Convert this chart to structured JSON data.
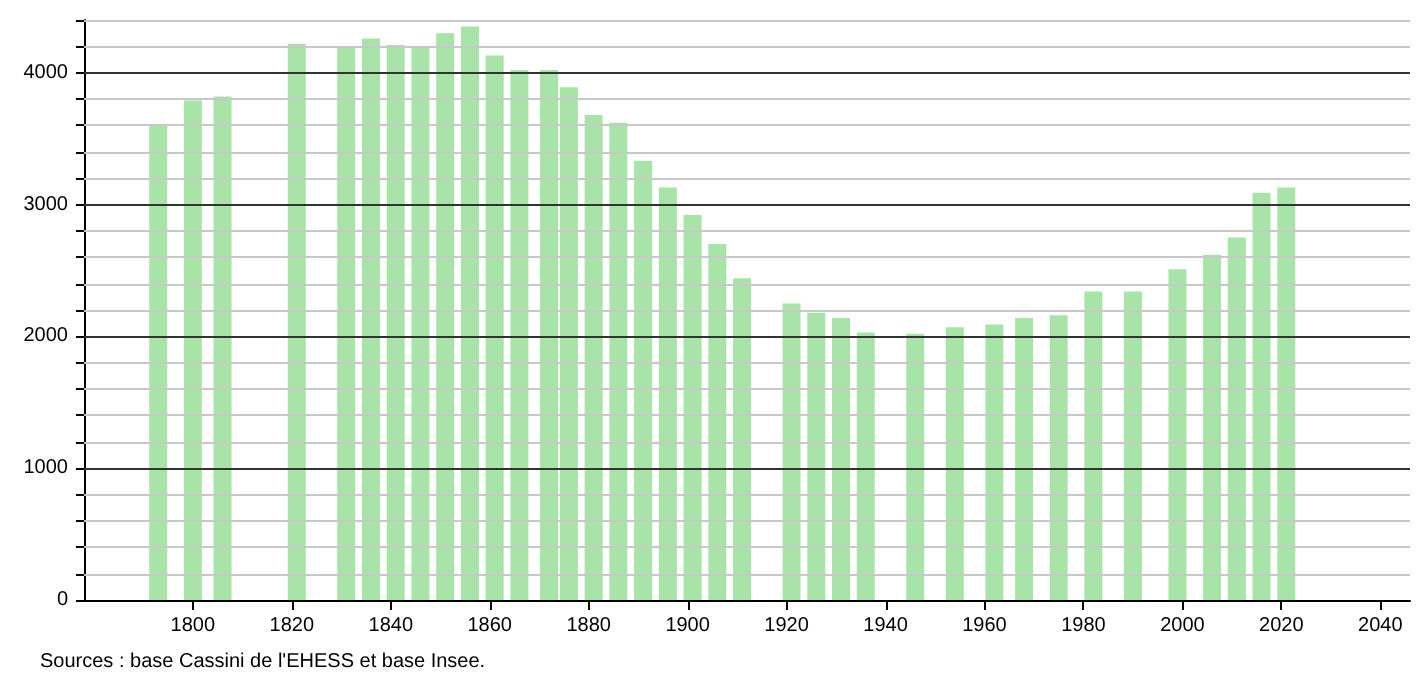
{
  "chart_data": {
    "type": "bar",
    "x": [
      1793,
      1800,
      1806,
      1821,
      1831,
      1836,
      1841,
      1846,
      1851,
      1856,
      1861,
      1866,
      1872,
      1876,
      1881,
      1886,
      1891,
      1896,
      1901,
      1906,
      1911,
      1921,
      1926,
      1931,
      1936,
      1946,
      1954,
      1962,
      1968,
      1975,
      1982,
      1990,
      1999,
      2006,
      2011,
      2016,
      2021
    ],
    "values": [
      3600,
      3790,
      3820,
      4220,
      4200,
      4260,
      4210,
      4200,
      4300,
      4350,
      4130,
      4020,
      4020,
      3890,
      3680,
      3620,
      3330,
      3130,
      2920,
      2700,
      2440,
      2250,
      2180,
      2140,
      2030,
      2020,
      2070,
      2090,
      2140,
      2160,
      2340,
      2340,
      2510,
      2620,
      2750,
      3090,
      3130
    ],
    "color": "#a8e4a8",
    "xlim": [
      1778,
      2046
    ],
    "xticks": [
      1800,
      1820,
      1840,
      1860,
      1880,
      1900,
      1920,
      1940,
      1960,
      1980,
      2000,
      2020,
      2040
    ],
    "ylim": [
      0,
      4400
    ],
    "yticks": [
      0,
      {
        "value": 200,
        "label": null
      },
      {
        "value": 400,
        "label": null
      },
      {
        "value": 600,
        "label": null
      },
      {
        "value": 800,
        "label": null
      },
      1000,
      {
        "value": 1200,
        "label": null
      },
      {
        "value": 1400,
        "label": null
      },
      {
        "value": 1600,
        "label": null
      },
      {
        "value": 1800,
        "label": null
      },
      2000,
      {
        "value": 2200,
        "label": null
      },
      {
        "value": 2400,
        "label": null
      },
      {
        "value": 2600,
        "label": null
      },
      {
        "value": 2800,
        "label": null
      },
      3000,
      {
        "value": 3200,
        "label": null
      },
      {
        "value": 3400,
        "label": null
      },
      {
        "value": 3600,
        "label": null
      },
      {
        "value": 3800,
        "label": null
      },
      4000,
      {
        "value": 4200,
        "label": null
      },
      {
        "value": 4400,
        "label": null
      }
    ],
    "grid": "y",
    "annotations": [
      "Sources : base Cassini de l'EHESS et base Insee."
    ]
  }
}
